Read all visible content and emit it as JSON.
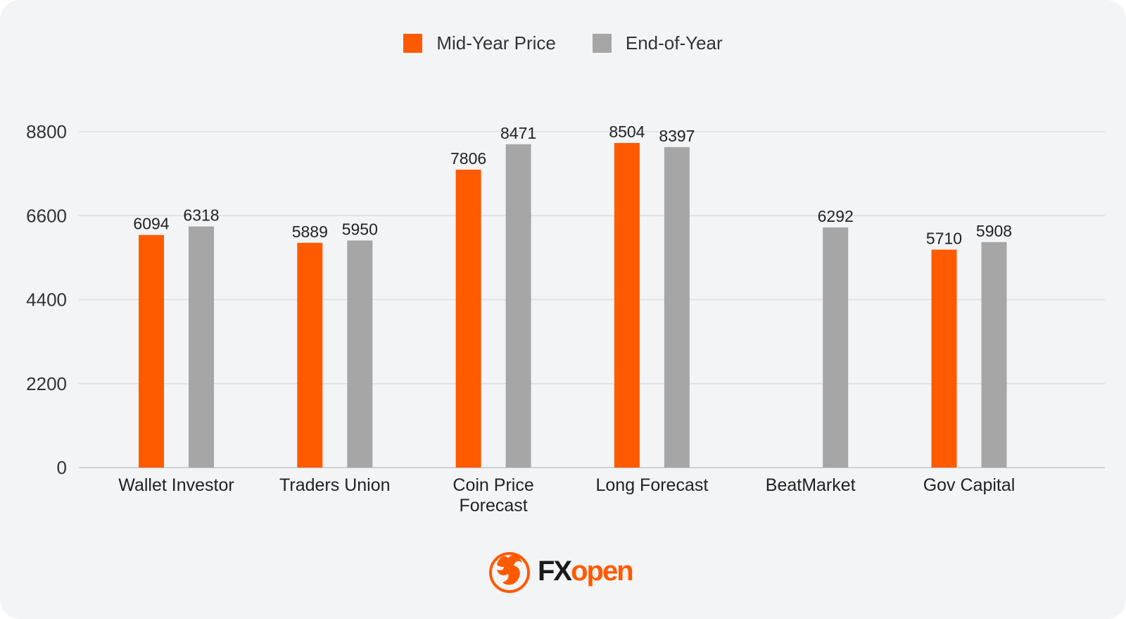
{
  "chart_data": {
    "type": "bar",
    "categories": [
      [
        "Wallet Investor"
      ],
      [
        "Traders Union"
      ],
      [
        "Coin Price",
        "Forecast"
      ],
      [
        "Long Forecast"
      ],
      [
        "BeatMarket"
      ],
      [
        "Gov Capital"
      ]
    ],
    "series": [
      {
        "name": "Mid-Year Price",
        "color": "#ff5a00",
        "values": [
          6094,
          5889,
          7806,
          8504,
          null,
          5710
        ]
      },
      {
        "name": "End-of-Year",
        "color": "#a6a6a6",
        "values": [
          6318,
          5950,
          8471,
          8397,
          6292,
          5908
        ]
      }
    ],
    "yticks": [
      0,
      2200,
      4400,
      6600,
      8800
    ],
    "ylim": [
      0,
      8800
    ],
    "grid": true,
    "legend_position": "top-center"
  },
  "brand": {
    "logo_text_a": "FX",
    "logo_text_b": "open",
    "accent": "#ff5a00"
  }
}
